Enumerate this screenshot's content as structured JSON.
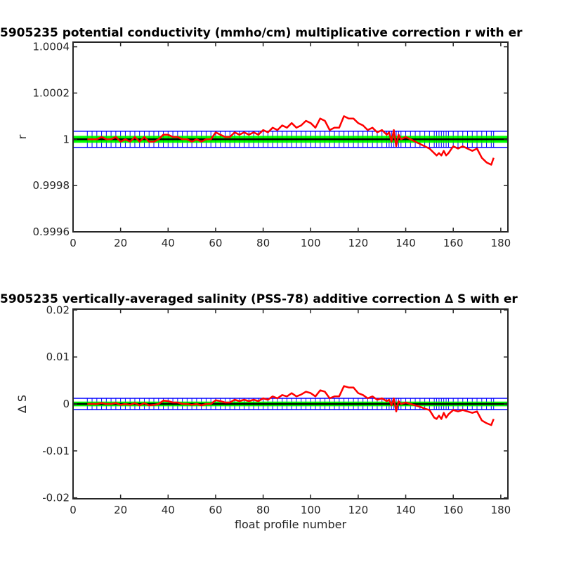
{
  "chart_data": [
    {
      "type": "line",
      "title": "5905235 potential conductivity (mmho/cm) multiplicative correction r with er",
      "xlabel": "",
      "ylabel": "r",
      "xlim": [
        0,
        183
      ],
      "ylim": [
        0.9996,
        1.00042
      ],
      "xticks": [
        0,
        20,
        40,
        60,
        80,
        100,
        120,
        140,
        160,
        180
      ],
      "xticklabels": [
        "0",
        "20",
        "40",
        "60",
        "80",
        "100",
        "120",
        "140",
        "160",
        "180"
      ],
      "yticks": [
        0.9996,
        0.9998,
        1,
        1.0002,
        1.0004
      ],
      "yticklabels": [
        "0.9996",
        "0.9998",
        "1",
        "1.0002",
        "1.0004"
      ],
      "grid": false,
      "series": [
        {
          "color": "#ff0000",
          "x": [
            6,
            8,
            10,
            12,
            14,
            16,
            18,
            20,
            22,
            24,
            26,
            28,
            30,
            32,
            34,
            36,
            38,
            40,
            42,
            44,
            46,
            48,
            50,
            52,
            54,
            56,
            58,
            60,
            62,
            64,
            66,
            68,
            70,
            72,
            74,
            76,
            78,
            80,
            82,
            84,
            86,
            88,
            90,
            92,
            94,
            96,
            98,
            100,
            102,
            104,
            106,
            108,
            110,
            112,
            114,
            116,
            118,
            120,
            122,
            124,
            126,
            128,
            130,
            132,
            133,
            134,
            135,
            136,
            137,
            138,
            140,
            142,
            144,
            146,
            148,
            150,
            152,
            153,
            154,
            155,
            156,
            157,
            158,
            160,
            162,
            164,
            166,
            168,
            170,
            172,
            174,
            176,
            177
          ],
          "y": [
            1.0,
            1.0,
            1.0,
            1.00001,
            1.0,
            1.0,
            1.00001,
            0.99999,
            1.0,
            0.99999,
            1.00001,
            0.99999,
            1.00001,
            0.99999,
            0.99999,
            1.0,
            1.00002,
            1.00002,
            1.00001,
            1.00001,
            1.0,
            1.0,
            0.99999,
            1.0,
            0.99999,
            1.0,
            1.0,
            1.00003,
            1.00002,
            1.00001,
            1.00001,
            1.00003,
            1.00002,
            1.00003,
            1.00002,
            1.00003,
            1.00002,
            1.00004,
            1.00003,
            1.00005,
            1.00004,
            1.00006,
            1.00005,
            1.00007,
            1.00005,
            1.00006,
            1.00008,
            1.00007,
            1.00005,
            1.00009,
            1.00008,
            1.00004,
            1.00005,
            1.00005,
            1.0001,
            1.00009,
            1.00009,
            1.00007,
            1.00006,
            1.00004,
            1.00005,
            1.00003,
            1.00004,
            1.00002,
            1.00003,
            0.99999,
            1.00004,
            0.99997,
            1.00002,
            1.0,
            1.00001,
            1.0,
            0.99999,
            0.99998,
            0.99997,
            0.99996,
            0.99994,
            0.99993,
            0.99994,
            0.99993,
            0.99995,
            0.99993,
            0.99994,
            0.99997,
            0.99996,
            0.99997,
            0.99996,
            0.99995,
            0.99996,
            0.99992,
            0.9999,
            0.99989,
            0.99992
          ],
          "errors": 3.5e-05,
          "inner_errors": 1.5e-05
        }
      ]
    },
    {
      "type": "line",
      "title": "5905235 vertically-averaged salinity (PSS-78) additive correction ∆ S with er",
      "xlabel": "float profile number",
      "ylabel": "∆ S",
      "xlim": [
        0,
        183
      ],
      "ylim": [
        -0.0202,
        0.0202
      ],
      "xticks": [
        0,
        20,
        40,
        60,
        80,
        100,
        120,
        140,
        160,
        180
      ],
      "xticklabels": [
        "0",
        "20",
        "40",
        "60",
        "80",
        "100",
        "120",
        "140",
        "160",
        "180"
      ],
      "yticks": [
        -0.02,
        -0.01,
        0,
        0.01,
        0.02
      ],
      "yticklabels": [
        "-0.02",
        "-0.01",
        "0",
        "0.01",
        "0.02"
      ],
      "grid": false,
      "series": [
        {
          "color": "#ff0000",
          "x": [
            6,
            8,
            10,
            12,
            14,
            16,
            18,
            20,
            22,
            24,
            26,
            28,
            30,
            32,
            34,
            36,
            38,
            40,
            42,
            44,
            46,
            48,
            50,
            52,
            54,
            56,
            58,
            60,
            62,
            64,
            66,
            68,
            70,
            72,
            74,
            76,
            78,
            80,
            82,
            84,
            86,
            88,
            90,
            92,
            94,
            96,
            98,
            100,
            102,
            104,
            106,
            108,
            110,
            112,
            114,
            116,
            118,
            120,
            122,
            124,
            126,
            128,
            130,
            132,
            133,
            134,
            135,
            136,
            137,
            138,
            140,
            142,
            144,
            146,
            148,
            150,
            152,
            153,
            154,
            155,
            156,
            157,
            158,
            160,
            162,
            164,
            166,
            168,
            170,
            172,
            174,
            176,
            177
          ],
          "y": [
            0.0,
            0.0,
            0.0,
            0.0002,
            0.0,
            0.0,
            0.0002,
            -0.0002,
            0.0,
            -0.0002,
            0.0002,
            -0.0003,
            0.0002,
            -0.0003,
            -0.0002,
            0.0,
            0.0007,
            0.0006,
            0.0003,
            0.0003,
            0.0,
            0.0,
            -0.0002,
            0.0,
            -0.0003,
            0.0,
            0.0,
            0.0008,
            0.0006,
            0.0003,
            0.0003,
            0.0009,
            0.0006,
            0.0009,
            0.0006,
            0.0009,
            0.0006,
            0.0012,
            0.0009,
            0.0016,
            0.0012,
            0.0019,
            0.0016,
            0.0023,
            0.0016,
            0.002,
            0.0026,
            0.0023,
            0.0016,
            0.0029,
            0.0026,
            0.0012,
            0.0016,
            0.0016,
            0.0038,
            0.0035,
            0.0035,
            0.0023,
            0.0019,
            0.0012,
            0.0016,
            0.0009,
            0.0012,
            0.0006,
            0.0009,
            -0.0003,
            0.0012,
            -0.0016,
            0.0006,
            0.0,
            0.0003,
            0.0,
            -0.0003,
            -0.0006,
            -0.001,
            -0.0013,
            -0.0029,
            -0.0032,
            -0.0025,
            -0.0032,
            -0.0019,
            -0.0029,
            -0.0022,
            -0.0013,
            -0.0016,
            -0.0013,
            -0.0016,
            -0.0019,
            -0.0016,
            -0.0035,
            -0.0041,
            -0.0045,
            -0.0032
          ],
          "errors": 0.0012,
          "inner_errors": 0.0005
        }
      ]
    }
  ]
}
